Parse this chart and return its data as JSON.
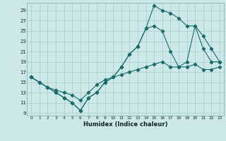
{
  "xlabel": "Humidex (Indice chaleur)",
  "bg_color": "#cce8e8",
  "grid_color": "#aacccc",
  "line_color": "#1a6b6b",
  "xlim": [
    -0.5,
    23.5
  ],
  "ylim": [
    8.5,
    30.5
  ],
  "yticks": [
    9,
    11,
    13,
    15,
    17,
    19,
    21,
    23,
    25,
    27,
    29
  ],
  "xticks": [
    0,
    1,
    2,
    3,
    4,
    5,
    6,
    7,
    8,
    9,
    10,
    11,
    12,
    13,
    14,
    15,
    16,
    17,
    18,
    19,
    20,
    21,
    22,
    23
  ],
  "line1_x": [
    0,
    1,
    2,
    3,
    4,
    5,
    6,
    7,
    8,
    9,
    10,
    11,
    12,
    13,
    14,
    15,
    16,
    17,
    18,
    19,
    20,
    21,
    22,
    23
  ],
  "line1_y": [
    16,
    15,
    14,
    13,
    12,
    11,
    9.5,
    12,
    13,
    15,
    16,
    18,
    20.5,
    22,
    25.5,
    30,
    29,
    28.5,
    27.5,
    26,
    26,
    24,
    21.5,
    19
  ],
  "line2_x": [
    0,
    1,
    2,
    3,
    4,
    5,
    6,
    7,
    8,
    9,
    10,
    11,
    12,
    13,
    14,
    15,
    16,
    17,
    18,
    19,
    20,
    21,
    22,
    23
  ],
  "line2_y": [
    16,
    15,
    14,
    13,
    12,
    11,
    9.5,
    12,
    13,
    15,
    16,
    18,
    20.5,
    22,
    25.5,
    26,
    25,
    21,
    18,
    19,
    26,
    21.5,
    19,
    19
  ],
  "line3_x": [
    0,
    1,
    2,
    3,
    4,
    5,
    6,
    7,
    8,
    9,
    10,
    11,
    12,
    13,
    14,
    15,
    16,
    17,
    18,
    19,
    20,
    21,
    22,
    23
  ],
  "line3_y": [
    16,
    15,
    14,
    13.5,
    13,
    12.5,
    11.5,
    13,
    14.5,
    15.5,
    16,
    16.5,
    17,
    17.5,
    18,
    18.5,
    19,
    18,
    18,
    18,
    18.5,
    17.5,
    17.5,
    18
  ]
}
